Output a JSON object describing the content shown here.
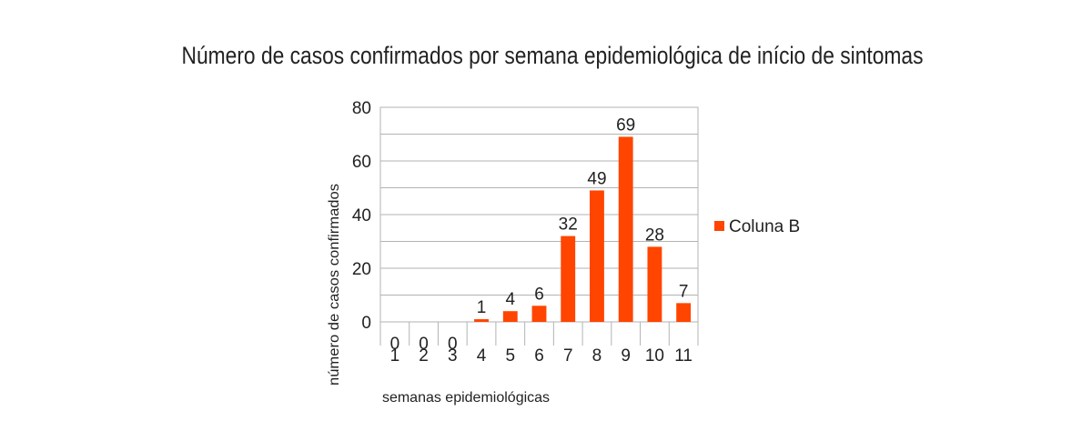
{
  "chart_data": {
    "type": "bar",
    "title": "Número de casos confirmados por semana epidemiológica de início de sintomas",
    "xlabel": "semanas epidemiológicas",
    "ylabel": "número de casos confirmados",
    "categories": [
      "1",
      "2",
      "3",
      "4",
      "5",
      "6",
      "7",
      "8",
      "9",
      "10",
      "11"
    ],
    "series": [
      {
        "name": "Coluna B",
        "values": [
          0,
          0,
          0,
          1,
          4,
          6,
          32,
          49,
          69,
          28,
          7
        ],
        "color": "#ff4500"
      }
    ],
    "ylim": [
      0,
      80
    ],
    "yticks": [
      "0",
      "20",
      "40",
      "60",
      "80"
    ],
    "grid": true,
    "legend_position": "right"
  }
}
